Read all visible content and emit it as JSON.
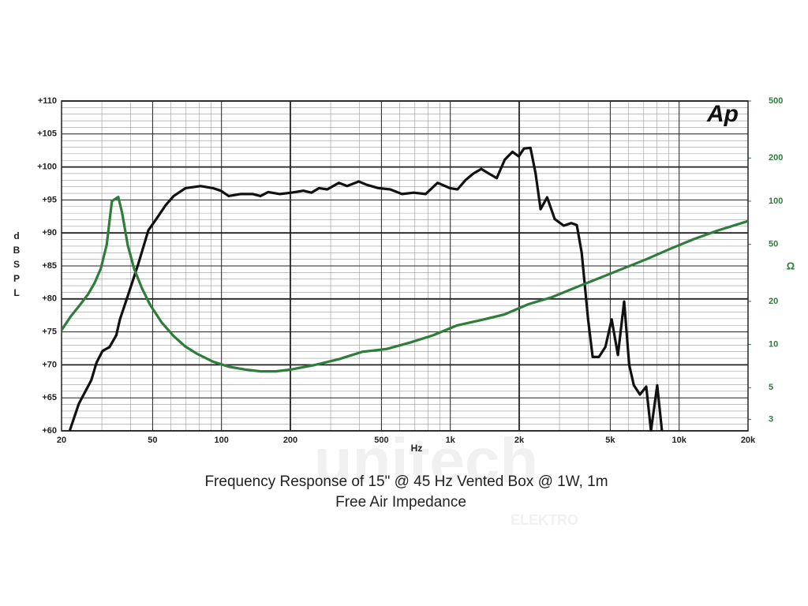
{
  "chart_data": {
    "type": "line",
    "title": "Frequency Response of 15\" @ 45 Hz Vented Box @ 1W, 1m",
    "subtitle": "Free Air Impedance",
    "x_label": "Hz",
    "y_label": "dB SPL",
    "y2_label": "Ω",
    "logo": "Ap",
    "watermark": "unitech",
    "watermark_sub": "ELEKTRO",
    "xscale": "log",
    "y2scale": "log",
    "grid": true,
    "xlim": [
      20,
      20000
    ],
    "xticks": [
      20,
      50,
      100,
      200,
      500,
      {
        "value": 1000,
        "label": "1k"
      },
      {
        "value": 2000,
        "label": "2k"
      },
      {
        "value": 5000,
        "label": "5k"
      },
      {
        "value": 10000,
        "label": "10k"
      },
      {
        "value": 20000,
        "label": "20k"
      }
    ],
    "ylim": [
      60,
      110
    ],
    "yticks": [
      {
        "value": 60,
        "label": "+60"
      },
      {
        "value": 65,
        "label": "+65"
      },
      {
        "value": 70,
        "label": "+70"
      },
      {
        "value": 75,
        "label": "+75"
      },
      {
        "value": 80,
        "label": "+80"
      },
      {
        "value": 85,
        "label": "+85"
      },
      {
        "value": 90,
        "label": "+90"
      },
      {
        "value": 95,
        "label": "+95"
      },
      {
        "value": 100,
        "label": "+100"
      },
      {
        "value": 105,
        "label": "+105"
      },
      {
        "value": 110,
        "label": "+110"
      }
    ],
    "y2lim": [
      2.5,
      500
    ],
    "y2ticks": [
      3,
      5,
      10,
      20,
      50,
      100,
      200,
      500
    ],
    "series": [
      {
        "color": "#111111",
        "x": [
          21.7,
          23.8,
          27,
          28.4,
          30.2,
          32.4,
          34.7,
          36,
          39,
          43.2,
          47.9,
          52.6,
          57,
          61.8,
          69.6,
          81,
          91.7,
          99.3,
          107.5,
          121,
          137,
          148,
          160,
          180,
          202,
          228,
          247,
          267,
          290,
          326,
          354,
          398,
          431,
          485,
          546,
          615,
          692,
          780,
          880,
          995,
          1075,
          1165,
          1260,
          1365,
          1475,
          1595,
          1730,
          1870,
          1990,
          2100,
          2240,
          2360,
          2480,
          2650,
          2860,
          3130,
          3380,
          3570,
          3750,
          4000,
          4190,
          4460,
          4760,
          5070,
          5400,
          5750,
          6050,
          6340,
          6740,
          7180,
          7530,
          8020,
          8410
        ],
        "values": [
          60,
          64.1,
          67.7,
          70.3,
          72.1,
          72.7,
          74.5,
          76.9,
          80.5,
          85.2,
          90.4,
          92.4,
          94.2,
          95.6,
          96.8,
          97.1,
          96.8,
          96.4,
          95.6,
          95.9,
          95.9,
          95.6,
          96.2,
          95.9,
          96.1,
          96.4,
          96.1,
          96.8,
          96.6,
          97.6,
          97.1,
          97.8,
          97.3,
          96.8,
          96.6,
          95.9,
          96.1,
          95.9,
          97.6,
          96.8,
          96.6,
          98,
          99,
          99.7,
          99,
          98.3,
          101.1,
          102.3,
          101.6,
          102.8,
          102.9,
          99,
          93.6,
          95.4,
          92.1,
          91.1,
          91.5,
          91.2,
          87,
          76.9,
          71.2,
          71.2,
          72.7,
          76.9,
          71.5,
          79.6,
          70,
          66.9,
          65.5,
          66.7,
          60,
          66.9,
          60
        ]
      },
      {
        "color": "#2e7d3a",
        "axis": "y2",
        "x": [
          20,
          22,
          24.2,
          26.2,
          27.9,
          29.7,
          31.5,
          33.2,
          35.4,
          36.8,
          38.9,
          41.5,
          44.9,
          48.6,
          54.7,
          61.6,
          69.4,
          78.3,
          91.7,
          108,
          126,
          148,
          173,
          202,
          256,
          326,
          413,
          524,
          664,
          842,
          1070,
          1360,
          1720,
          2190,
          2780,
          3530,
          4480,
          5690,
          7220,
          9160,
          11600,
          14750,
          20000
        ],
        "values": [
          12.6,
          15.8,
          19.1,
          22.6,
          26.9,
          33.9,
          49.6,
          100,
          107,
          82.7,
          49.6,
          33.9,
          24.7,
          19.1,
          14.3,
          11.5,
          9.7,
          8.6,
          7.6,
          7,
          6.7,
          6.5,
          6.5,
          6.7,
          7.2,
          7.9,
          8.9,
          9.3,
          10.3,
          11.6,
          13.6,
          14.8,
          16.2,
          19.1,
          21.4,
          25,
          29.1,
          33.9,
          39.5,
          46.6,
          54.4,
          62.5,
          72.6
        ]
      }
    ]
  }
}
